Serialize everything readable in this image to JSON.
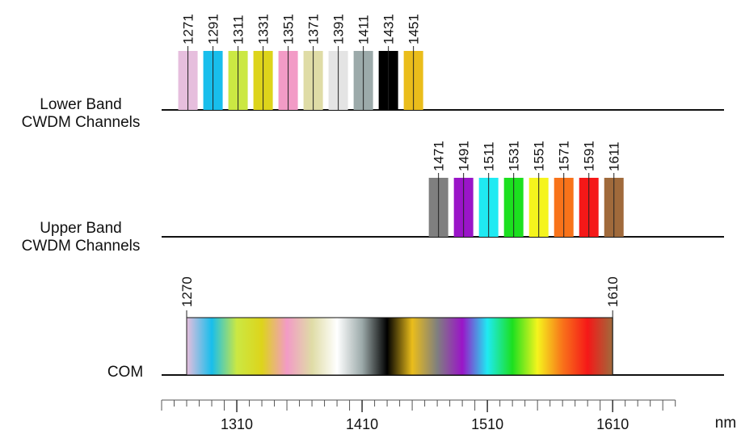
{
  "labels": {
    "lower_line1": "Lower Band",
    "lower_line2": "CWDM Channels",
    "upper_line1": "Upper Band",
    "upper_line2": "CWDM Channels",
    "com": "COM",
    "unit": "nm"
  },
  "axis": {
    "min": 1250,
    "max": 1660,
    "minor_step": 10,
    "major_step": 50,
    "tick_labels": [
      1310,
      1410,
      1510,
      1610
    ]
  },
  "lower_band": [
    {
      "wavelength": 1271,
      "color": "#E6BEDD"
    },
    {
      "wavelength": 1291,
      "color": "#18BEEC"
    },
    {
      "wavelength": 1311,
      "color": "#CBE843"
    },
    {
      "wavelength": 1331,
      "color": "#DDD41B"
    },
    {
      "wavelength": 1351,
      "color": "#F29BC6"
    },
    {
      "wavelength": 1371,
      "color": "#DFDCA6"
    },
    {
      "wavelength": 1391,
      "color": "#E4E4E4"
    },
    {
      "wavelength": 1411,
      "color": "#9CAAAA"
    },
    {
      "wavelength": 1431,
      "color": "#000000"
    },
    {
      "wavelength": 1451,
      "color": "#EABD1B"
    }
  ],
  "upper_band": [
    {
      "wavelength": 1471,
      "color": "#7F7F7F"
    },
    {
      "wavelength": 1491,
      "color": "#9A15C8"
    },
    {
      "wavelength": 1511,
      "color": "#1FEAF2"
    },
    {
      "wavelength": 1531,
      "color": "#1CE01F"
    },
    {
      "wavelength": 1551,
      "color": "#F5F41D"
    },
    {
      "wavelength": 1571,
      "color": "#F8731A"
    },
    {
      "wavelength": 1591,
      "color": "#F51818"
    },
    {
      "wavelength": 1611,
      "color": "#A06A3B"
    }
  ],
  "com": {
    "start": 1270,
    "end": 1610,
    "gradient_colors": [
      "#E6BEDD",
      "#18BEEC",
      "#CBE843",
      "#DDD41B",
      "#F29BC6",
      "#DFDCA6",
      "#FFFFFF",
      "#9CAAAA",
      "#000000",
      "#EABD1B",
      "#7F7F7F",
      "#9A15C8",
      "#1FEAF2",
      "#1CE01F",
      "#F5F41D",
      "#F8731A",
      "#F51818",
      "#A06A3B"
    ]
  }
}
